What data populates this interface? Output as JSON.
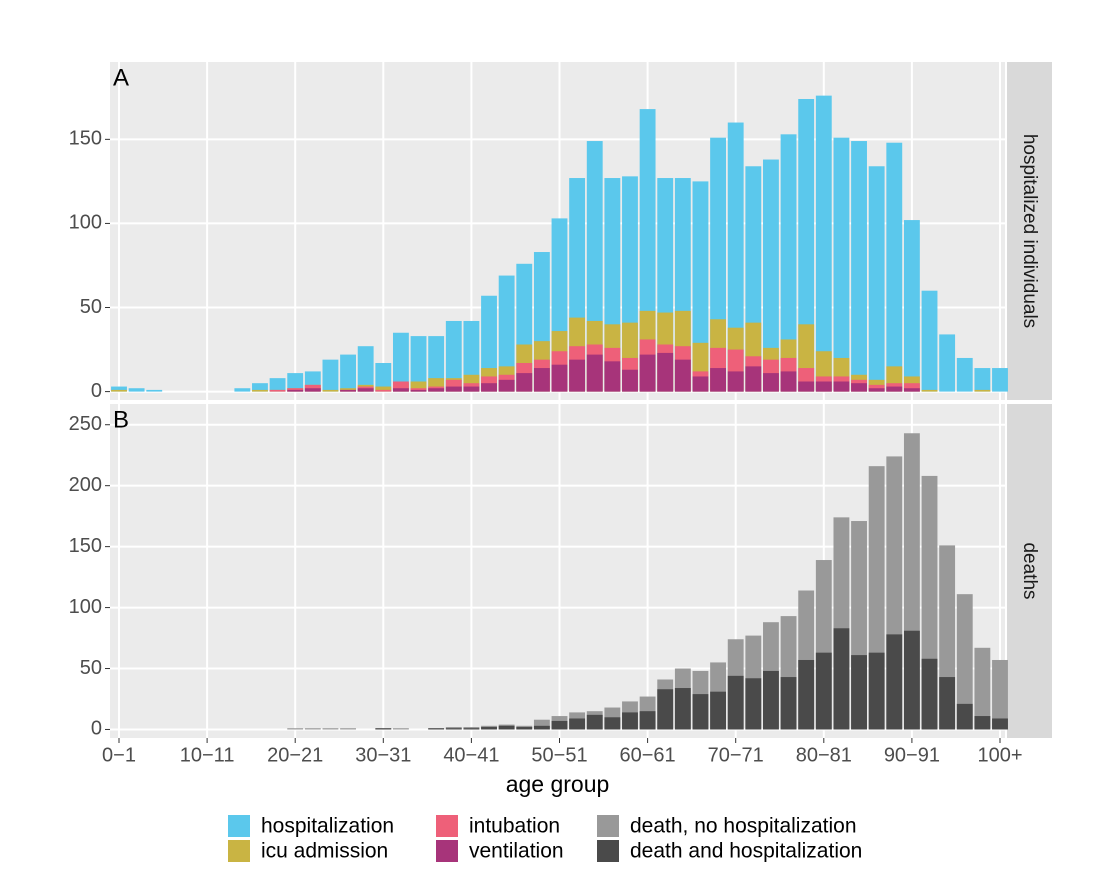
{
  "chart_data": [
    {
      "type": "bar",
      "panel_label": "A",
      "facet_label": "hospitalized individuals",
      "ylim": [
        -5,
        196
      ],
      "yticks": [
        0,
        50,
        100,
        150
      ],
      "grid": true,
      "series": [
        {
          "name": "hospitalization",
          "color": "#5bc8ec",
          "values": [
            3,
            2,
            1,
            0,
            0,
            0,
            0,
            2,
            5,
            8,
            11,
            12,
            19,
            22,
            27,
            17,
            35,
            33,
            33,
            42,
            42,
            57,
            69,
            76,
            83,
            103,
            127,
            149,
            127,
            128,
            168,
            127,
            127,
            125,
            151,
            160,
            134,
            138,
            153,
            174,
            176,
            151,
            149,
            134,
            148,
            102,
            60,
            34,
            20,
            14,
            14
          ]
        },
        {
          "name": "icu admission",
          "color": "#c9b443",
          "values": [
            1,
            0,
            0,
            0,
            0,
            0,
            0,
            0,
            1,
            1,
            2,
            4,
            1,
            2,
            4,
            3,
            5,
            6,
            8,
            8,
            10,
            14,
            15,
            28,
            30,
            36,
            44,
            42,
            40,
            41,
            48,
            47,
            48,
            29,
            43,
            38,
            41,
            26,
            31,
            40,
            24,
            20,
            10,
            7,
            15,
            9,
            1,
            0,
            0,
            1,
            0
          ]
        },
        {
          "name": "intubation",
          "color": "#ee6079",
          "values": [
            0,
            0,
            0,
            0,
            0,
            0,
            0,
            0,
            0,
            1,
            2,
            4,
            0,
            1,
            3,
            1,
            6,
            2,
            3,
            7,
            5,
            9,
            10,
            17,
            19,
            24,
            27,
            28,
            26,
            20,
            31,
            28,
            27,
            12,
            26,
            25,
            21,
            19,
            20,
            14,
            9,
            9,
            7,
            4,
            5,
            5,
            0,
            0,
            0,
            0,
            0
          ]
        },
        {
          "name": "ventilation",
          "color": "#a7347a",
          "values": [
            0,
            0,
            0,
            0,
            0,
            0,
            0,
            0,
            0,
            0,
            1,
            2,
            0,
            1,
            2,
            0,
            2,
            1,
            2,
            3,
            3,
            5,
            7,
            11,
            14,
            16,
            19,
            22,
            18,
            13,
            22,
            23,
            19,
            9,
            14,
            12,
            15,
            11,
            12,
            6,
            6,
            6,
            5,
            2,
            3,
            2,
            0,
            0,
            0,
            0,
            0
          ]
        }
      ]
    },
    {
      "type": "bar",
      "panel_label": "B",
      "facet_label": "deaths",
      "xlabel": "age group",
      "categories": [
        "0−1",
        null,
        null,
        null,
        null,
        "10−11",
        null,
        null,
        null,
        null,
        "20−21",
        null,
        null,
        null,
        null,
        "30−31",
        null,
        null,
        null,
        null,
        "40−41",
        null,
        null,
        null,
        null,
        "50−51",
        null,
        null,
        null,
        null,
        "60−61",
        null,
        null,
        null,
        null,
        "70−71",
        null,
        null,
        null,
        null,
        "80−81",
        null,
        null,
        null,
        null,
        "90−91",
        null,
        null,
        null,
        null,
        "100+"
      ],
      "ylim": [
        -7,
        267
      ],
      "yticks": [
        0,
        50,
        100,
        150,
        200,
        250
      ],
      "grid": true,
      "series": [
        {
          "name": "death, no hospitalization",
          "color": "#999999",
          "values": [
            0,
            0,
            0,
            0,
            0,
            0,
            0,
            0,
            0,
            0,
            1,
            1,
            1,
            1,
            0,
            1,
            1,
            0,
            1,
            2,
            2,
            3,
            4,
            3,
            8,
            11,
            14,
            15,
            18,
            23,
            27,
            41,
            50,
            48,
            55,
            74,
            77,
            88,
            93,
            114,
            139,
            174,
            171,
            216,
            224,
            243,
            208,
            151,
            111,
            67,
            57
          ]
        },
        {
          "name": "death and hospitalization",
          "color": "#4a4a4a",
          "values": [
            0,
            0,
            0,
            0,
            0,
            0,
            0,
            0,
            0,
            0,
            0,
            0,
            0,
            0,
            0,
            1,
            0,
            0,
            1,
            1,
            1,
            2,
            3,
            2,
            3,
            7,
            9,
            12,
            10,
            14,
            15,
            33,
            34,
            29,
            31,
            44,
            42,
            48,
            43,
            57,
            63,
            83,
            61,
            63,
            78,
            81,
            58,
            43,
            21,
            11,
            9
          ]
        }
      ]
    }
  ]
}
